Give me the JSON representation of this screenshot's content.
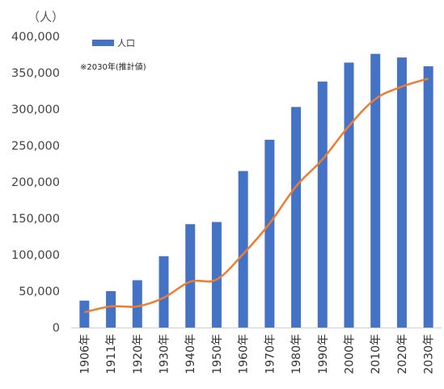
{
  "chart_data": {
    "type": "bar+line",
    "title": "",
    "ylabel": "（人）",
    "xlabel": "",
    "ylim": [
      0,
      400000
    ],
    "yticks": [
      "0",
      "50,000",
      "100,000",
      "150,000",
      "200,000",
      "250,000",
      "300,000",
      "350,000",
      "400,000"
    ],
    "categories": [
      "1906年",
      "1911年",
      "1920年",
      "1930年",
      "1940年",
      "1950年",
      "1960年",
      "1970年",
      "1980年",
      "1990年",
      "2000年",
      "2010年",
      "2020年",
      "2030年"
    ],
    "series": [
      {
        "name": "人口",
        "type": "bar",
        "color": "#4472c4",
        "values": [
          37000,
          50000,
          65000,
          98000,
          142000,
          145000,
          215000,
          258000,
          303000,
          338000,
          364000,
          376000,
          371000,
          359000
        ]
      },
      {
        "name": "",
        "type": "line",
        "color": "#ed7d31",
        "values": [
          21000,
          29000,
          29000,
          41000,
          63000,
          66000,
          101000,
          143000,
          194000,
          231000,
          277000,
          314000,
          331000,
          342000
        ]
      }
    ],
    "legend": {
      "position": "top-left",
      "label": "人口"
    },
    "note": "※2030年(推計値)",
    "grid": false
  }
}
